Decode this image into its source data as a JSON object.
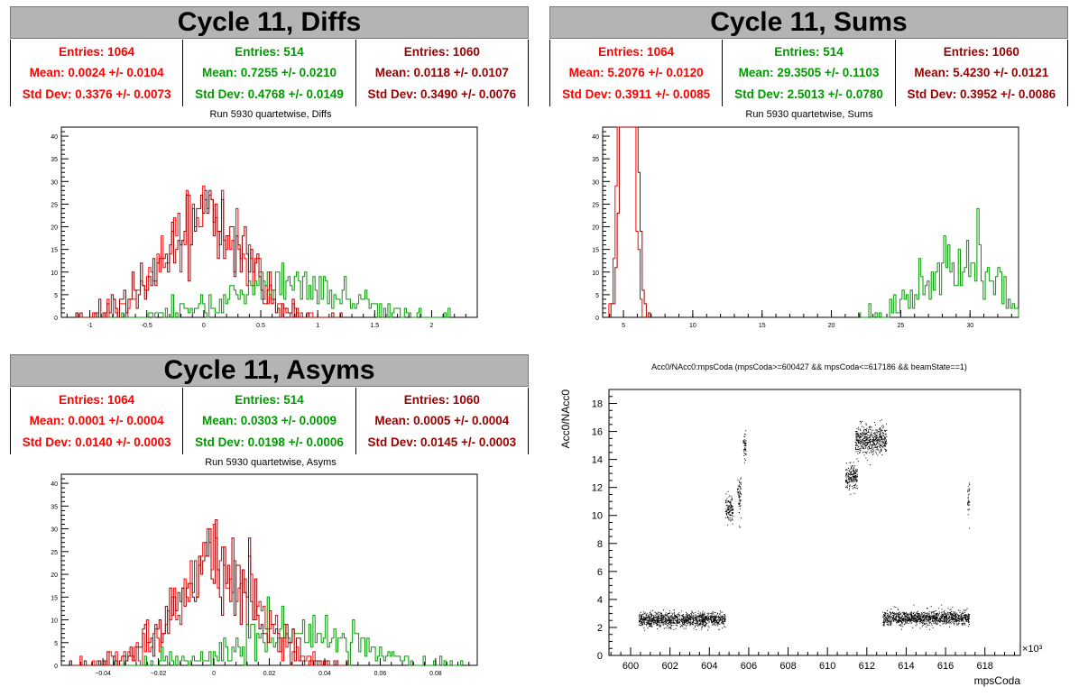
{
  "colors": {
    "red": "#ff0000",
    "green": "#009900",
    "darkred": "#990000",
    "black": "#000000"
  },
  "panels": {
    "diffs": {
      "title": "Cycle 11, Diffs",
      "stats": [
        {
          "entries": "Entries: 1064",
          "mean": "Mean: 0.0024 +/- 0.0104",
          "std": "Std Dev: 0.3376 +/- 0.0073",
          "color": "#ff0000"
        },
        {
          "entries": "Entries: 514",
          "mean": "Mean: 0.7255 +/- 0.0210",
          "std": "Std Dev: 0.4768 +/- 0.0149",
          "color": "#009900"
        },
        {
          "entries": "Entries: 1060",
          "mean": "Mean: 0.0118 +/- 0.0107",
          "std": "Std Dev: 0.3490 +/- 0.0076",
          "color": "#990000"
        }
      ],
      "subtitle": "Run 5930 quartetwise, Diffs"
    },
    "sums": {
      "title": "Cycle 11, Sums",
      "stats": [
        {
          "entries": "Entries: 1064",
          "mean": "Mean: 5.2076 +/- 0.0120",
          "std": "Std Dev: 0.3911 +/- 0.0085",
          "color": "#ff0000"
        },
        {
          "entries": "Entries: 514",
          "mean": "Mean: 29.3505 +/- 0.1103",
          "std": "Std Dev: 2.5013 +/- 0.0780",
          "color": "#009900"
        },
        {
          "entries": "Entries: 1060",
          "mean": "Mean: 5.4230 +/- 0.0121",
          "std": "Std Dev: 0.3952 +/- 0.0086",
          "color": "#990000"
        }
      ],
      "subtitle": "Run 5930 quartetwise, Sums"
    },
    "asyms": {
      "title": "Cycle 11, Asyms",
      "stats": [
        {
          "entries": "Entries: 1064",
          "mean": "Mean: 0.0001 +/- 0.0004",
          "std": "Std Dev: 0.0140 +/- 0.0003",
          "color": "#ff0000"
        },
        {
          "entries": "Entries: 514",
          "mean": "Mean: 0.0303 +/- 0.0009",
          "std": "Std Dev: 0.0198 +/- 0.0006",
          "color": "#009900"
        },
        {
          "entries": "Entries: 1060",
          "mean": "Mean: 0.0005 +/- 0.0004",
          "std": "Std Dev: 0.0145 +/- 0.0003",
          "color": "#990000"
        }
      ],
      "subtitle": "Run 5930 quartetwise, Asyms"
    },
    "scatter": {
      "title": "Acc0/NAcc0:mpsCoda (mpsCoda>=600427 && mpsCoda<=617186 && beamState==1)"
    }
  },
  "chart_data": [
    {
      "id": "diffs",
      "type": "histogram",
      "xlim": [
        -1.25,
        2.4
      ],
      "ylim": [
        0,
        42
      ],
      "xticks": [
        -1,
        -0.5,
        0,
        0.5,
        1,
        1.5,
        2
      ],
      "xtick_labels": [
        "-1",
        "-0.5",
        "0",
        "0.5",
        "1",
        "1.5",
        "2"
      ],
      "yticks": [
        0,
        5,
        10,
        15,
        20,
        25,
        30,
        35,
        40
      ],
      "ytick_labels": [
        "0",
        "5",
        "10",
        "15",
        "20",
        "25",
        "30",
        "35",
        "40"
      ],
      "series": [
        {
          "color": "#ff0000",
          "mean": 0.0024,
          "std": 0.3376,
          "entries": 1064
        },
        {
          "color": "#009900",
          "mean": 0.7255,
          "std": 0.4768,
          "entries": 514
        },
        {
          "color": "#990000",
          "mean": 0.0118,
          "std": 0.349,
          "entries": 1060
        }
      ]
    },
    {
      "id": "sums",
      "type": "histogram",
      "xlim": [
        3.5,
        33.5
      ],
      "ylim": [
        0,
        42
      ],
      "xticks": [
        5,
        10,
        15,
        20,
        25,
        30
      ],
      "xtick_labels": [
        "5",
        "10",
        "15",
        "20",
        "25",
        "30"
      ],
      "yticks": [
        0,
        5,
        10,
        15,
        20,
        25,
        30,
        35,
        40
      ],
      "ytick_labels": [
        "0",
        "5",
        "10",
        "15",
        "20",
        "25",
        "30",
        "35",
        "40"
      ],
      "series": [
        {
          "color": "#ff0000",
          "mean": 5.2076,
          "std": 0.3911,
          "entries": 1064
        },
        {
          "color": "#009900",
          "mean": 29.3505,
          "std": 2.5013,
          "entries": 514
        },
        {
          "color": "#990000",
          "mean": 5.423,
          "std": 0.3952,
          "entries": 1060
        }
      ]
    },
    {
      "id": "asyms",
      "type": "histogram",
      "xlim": [
        -0.055,
        0.095
      ],
      "ylim": [
        0,
        42
      ],
      "xticks": [
        -0.04,
        -0.02,
        0,
        0.02,
        0.04,
        0.06,
        0.08
      ],
      "xtick_labels": [
        "−0.04",
        "−0.02",
        "0",
        "0.02",
        "0.04",
        "0.06",
        "0.08"
      ],
      "yticks": [
        0,
        5,
        10,
        15,
        20,
        25,
        30,
        35,
        40
      ],
      "ytick_labels": [
        "0",
        "5",
        "10",
        "15",
        "20",
        "25",
        "30",
        "35",
        "40"
      ],
      "series": [
        {
          "color": "#ff0000",
          "mean": 0.0001,
          "std": 0.014,
          "entries": 1064
        },
        {
          "color": "#009900",
          "mean": 0.0303,
          "std": 0.0198,
          "entries": 514
        },
        {
          "color": "#990000",
          "mean": 0.0005,
          "std": 0.0145,
          "entries": 1060
        }
      ]
    },
    {
      "id": "scatter",
      "type": "scatter",
      "title": "Acc0/NAcc0:mpsCoda (mpsCoda>=600427 && mpsCoda<=617186 && beamState==1)",
      "xlabel": "mpsCoda",
      "ylabel": "Acc0/NAcc0",
      "x_multiplier": "×10³",
      "xlim": [
        598.9,
        619.8
      ],
      "ylim": [
        0,
        19
      ],
      "xticks": [
        600,
        602,
        604,
        606,
        608,
        610,
        612,
        614,
        616,
        618
      ],
      "xtick_labels": [
        "600",
        "602",
        "604",
        "606",
        "608",
        "610",
        "612",
        "614",
        "616",
        "618"
      ],
      "yticks": [
        0,
        2,
        4,
        6,
        8,
        10,
        12,
        14,
        16,
        18
      ],
      "ytick_labels": [
        "0",
        "2",
        "4",
        "6",
        "8",
        "10",
        "12",
        "14",
        "16",
        "18"
      ],
      "clusters": [
        {
          "x": [
            600.4,
            604.8
          ],
          "y_center": 2.6,
          "y_spread": 0.45
        },
        {
          "x": [
            604.8,
            605.2
          ],
          "y_center": 10.5,
          "y_spread": 0.8
        },
        {
          "x": [
            605.4,
            605.6
          ],
          "y_center": 11.5,
          "y_spread": 1.5
        },
        {
          "x": [
            605.7,
            605.85
          ],
          "y_center": 15.0,
          "y_spread": 1.0
        },
        {
          "x": [
            610.9,
            611.5
          ],
          "y_center": 12.8,
          "y_spread": 0.8
        },
        {
          "x": [
            611.4,
            613.0
          ],
          "y_center": 15.4,
          "y_spread": 0.9
        },
        {
          "x": [
            612.8,
            617.2
          ],
          "y_center": 2.7,
          "y_spread": 0.45
        },
        {
          "x": [
            617.1,
            617.2
          ],
          "y_center": 11.0,
          "y_spread": 1.2
        }
      ]
    }
  ]
}
